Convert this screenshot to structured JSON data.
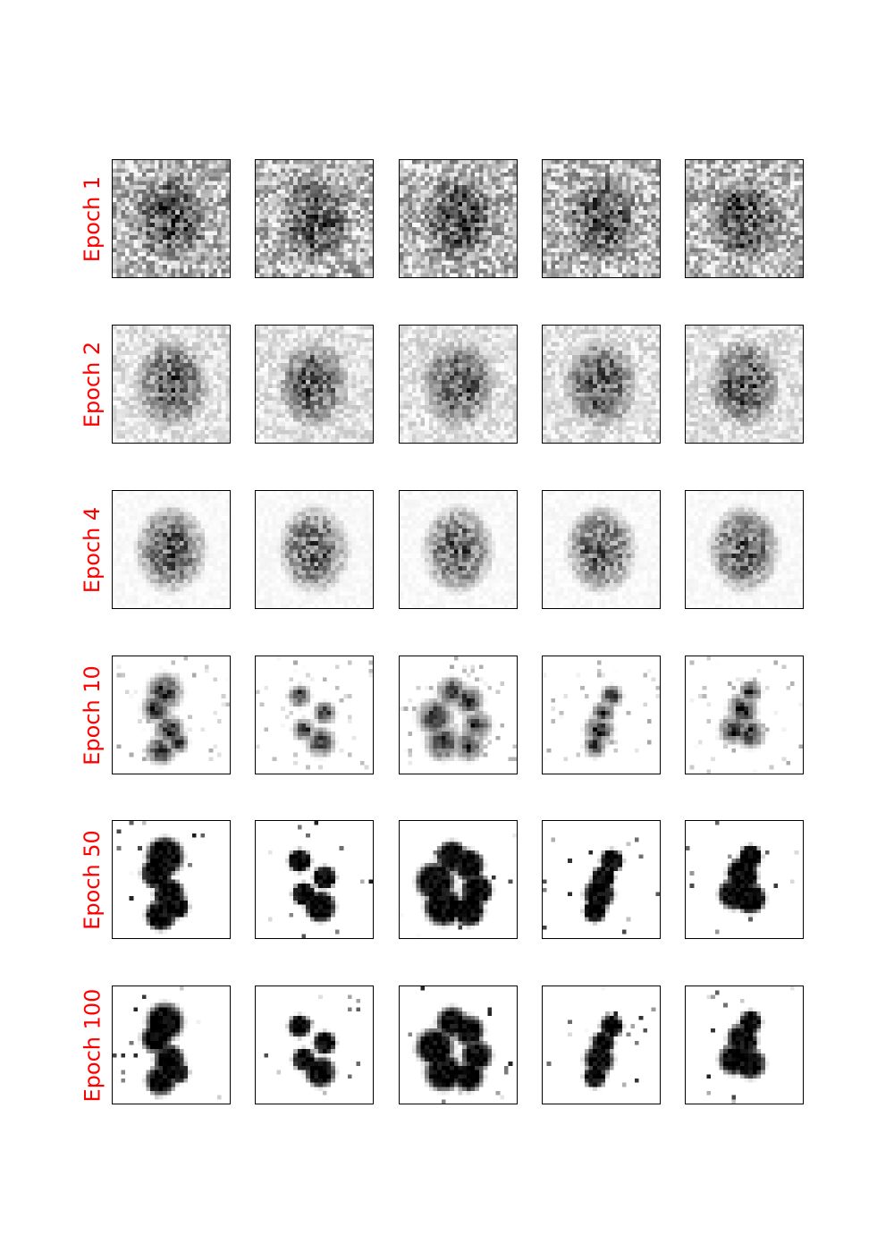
{
  "rows": [
    {
      "label": "Epoch 1",
      "stage": 0
    },
    {
      "label": "Epoch 2",
      "stage": 1
    },
    {
      "label": "Epoch 4",
      "stage": 2
    },
    {
      "label": "Epoch 10",
      "stage": 3
    },
    {
      "label": "Epoch 50",
      "stage": 4
    },
    {
      "label": "Epoch 100",
      "stage": 5
    }
  ],
  "columns": 5,
  "label_color": "#ff0000"
}
